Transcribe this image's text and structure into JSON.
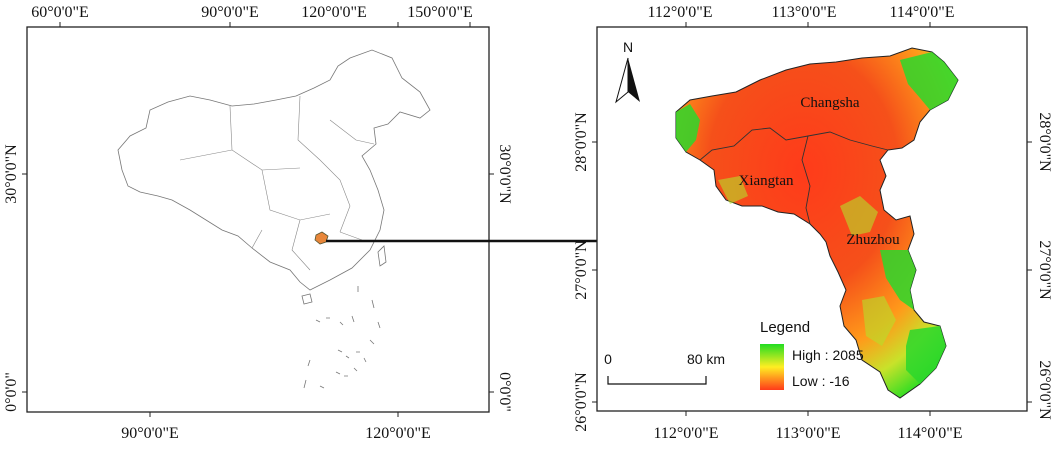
{
  "left_map": {
    "top_ticks": [
      "60°0'0\"E",
      "90°0'0\"E",
      "120°0'0\"E",
      "150°0'0\"E"
    ],
    "bottom_ticks": [
      "90°0'0\"E",
      "120°0'0\"E"
    ],
    "left_ticks": [
      "30°0'0\"N",
      "0°0'0\""
    ],
    "right_ticks": [
      "30°0'0\"N",
      "0°0'0\""
    ]
  },
  "right_map": {
    "top_ticks": [
      "112°0'0\"E",
      "113°0'0\"E",
      "114°0'0\"E"
    ],
    "bottom_ticks": [
      "112°0'0\"E",
      "113°0'0\"E",
      "114°0'0\"E"
    ],
    "left_ticks": [
      "28°0'0\"N",
      "27°0'0\"N",
      "26°0'0\"N"
    ],
    "right_ticks": [
      "28°0'0\"N",
      "27°0'0\"N",
      "26°0'0\"N"
    ],
    "cities": [
      "Changsha",
      "Xiangtan",
      "Zhuzhou"
    ],
    "north_label": "N",
    "legend": {
      "title": "Legend",
      "high_label": "High : 2085",
      "low_label": "Low : -16",
      "high_color": "#22dd22",
      "low_color": "#ff3b1a"
    },
    "scale_bar": {
      "start_label": "0",
      "end_label": "80 km"
    }
  }
}
